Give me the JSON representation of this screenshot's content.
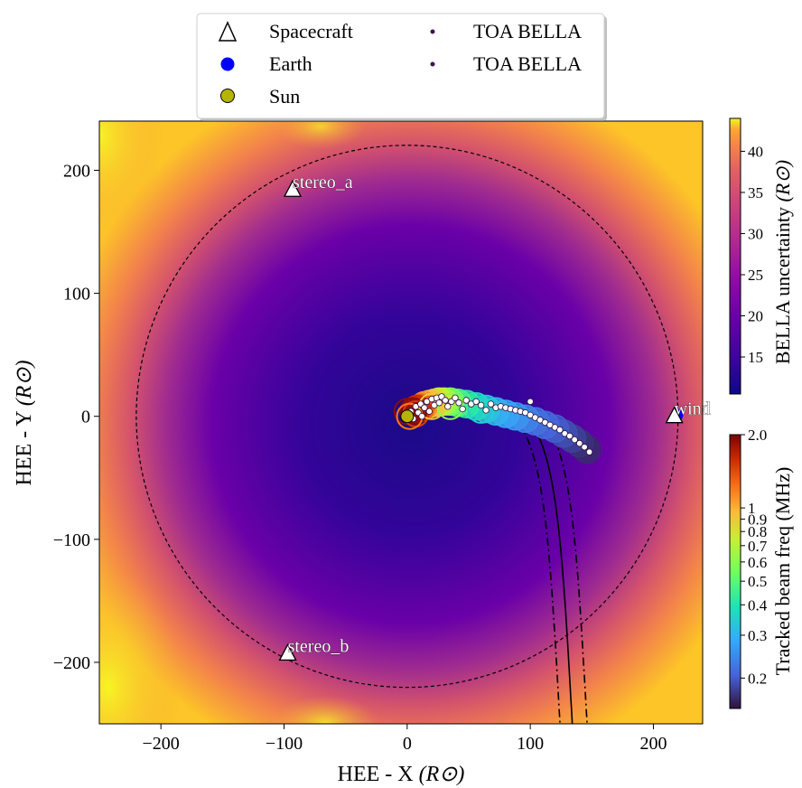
{
  "chart_data": {
    "type": "heatmap",
    "xlabel": "HEE - X",
    "ylabel": "HEE - Y",
    "axis_unit": "(R⊙)",
    "xlim": [
      -250,
      240
    ],
    "ylim": [
      -250,
      240
    ],
    "x_ticks": [
      -200,
      -100,
      0,
      100,
      200
    ],
    "y_ticks": [
      -200,
      -100,
      0,
      100,
      200
    ],
    "x_tick_labels": [
      "−200",
      "−100",
      "0",
      "100",
      "200"
    ],
    "y_tick_labels": [
      "−200",
      "−100",
      "0",
      "100",
      "200"
    ],
    "dashed_circle_radius": 220,
    "spacecraft": [
      {
        "name": "stereo_a",
        "x": -93,
        "y": 184
      },
      {
        "name": "stereo_b",
        "x": -97,
        "y": -193
      },
      {
        "name": "wind",
        "x": 217,
        "y": 0
      }
    ],
    "earth": {
      "x": 219,
      "y": 1
    },
    "sun": {
      "x": 0,
      "y": 0
    },
    "legend": {
      "position": "top-center",
      "entries": [
        {
          "label": "Spacecraft",
          "marker": "triangle"
        },
        {
          "label": "Earth",
          "marker": "circle",
          "color": "#0000ff"
        },
        {
          "label": "Sun",
          "marker": "circle",
          "color": "#b5b500"
        },
        {
          "label": "TOA BELLA",
          "marker": "dot",
          "color": "#3b1450"
        },
        {
          "label": "TOA BELLA",
          "marker": "dot",
          "color": "#3b1450"
        }
      ]
    },
    "uncertainty_colorbar": {
      "label": "BELLA uncertainty",
      "unit": "(R⊙)",
      "range": [
        10.5,
        44
      ],
      "ticks": [
        15,
        20,
        25,
        30,
        35,
        40
      ],
      "colormap": "plasma"
    },
    "frequency_colorbar": {
      "label": "Tracked beam freq (MHz)",
      "scale": "log",
      "range": [
        0.15,
        2.0
      ],
      "ticks": [
        0.2,
        0.3,
        0.4,
        0.5,
        0.6,
        0.7,
        0.8,
        0.9,
        1,
        2.0
      ],
      "tick_labels": [
        "0.2",
        "0.3",
        "0.4",
        "0.5",
        "0.6",
        "0.7",
        "0.8",
        "0.9",
        "1",
        "2.0"
      ],
      "colormap": "turbo"
    },
    "tracked_beam": [
      {
        "x": 5,
        "y": 4,
        "freq": 1.9
      },
      {
        "x": 8,
        "y": 6,
        "freq": 1.6
      },
      {
        "x": 11,
        "y": 7,
        "freq": 1.3
      },
      {
        "x": 14,
        "y": 9,
        "freq": 1.1
      },
      {
        "x": 18,
        "y": 10,
        "freq": 0.95
      },
      {
        "x": 22,
        "y": 11,
        "freq": 0.85
      },
      {
        "x": 26,
        "y": 12,
        "freq": 0.75
      },
      {
        "x": 30,
        "y": 12,
        "freq": 0.65
      },
      {
        "x": 35,
        "y": 12,
        "freq": 0.55
      },
      {
        "x": 41,
        "y": 11,
        "freq": 0.47
      },
      {
        "x": 48,
        "y": 10,
        "freq": 0.42
      },
      {
        "x": 56,
        "y": 8,
        "freq": 0.37
      },
      {
        "x": 64,
        "y": 6,
        "freq": 0.33
      },
      {
        "x": 72,
        "y": 4,
        "freq": 0.3
      },
      {
        "x": 80,
        "y": 2,
        "freq": 0.28
      },
      {
        "x": 88,
        "y": 0,
        "freq": 0.26
      },
      {
        "x": 96,
        "y": -2,
        "freq": 0.24
      },
      {
        "x": 104,
        "y": -4,
        "freq": 0.22
      },
      {
        "x": 112,
        "y": -7,
        "freq": 0.21
      },
      {
        "x": 120,
        "y": -10,
        "freq": 0.2
      },
      {
        "x": 127,
        "y": -14,
        "freq": 0.19
      },
      {
        "x": 134,
        "y": -18,
        "freq": 0.18
      },
      {
        "x": 140,
        "y": -22,
        "freq": 0.17
      },
      {
        "x": 146,
        "y": -27,
        "freq": 0.165
      }
    ],
    "toa_points": [
      [
        3,
        4
      ],
      [
        5,
        -2
      ],
      [
        7,
        8
      ],
      [
        9,
        3
      ],
      [
        11,
        10
      ],
      [
        12,
        0
      ],
      [
        14,
        7
      ],
      [
        16,
        12
      ],
      [
        18,
        4
      ],
      [
        20,
        14
      ],
      [
        22,
        9
      ],
      [
        24,
        15
      ],
      [
        26,
        11
      ],
      [
        28,
        16
      ],
      [
        31,
        13
      ],
      [
        33,
        8
      ],
      [
        36,
        12
      ],
      [
        39,
        15
      ],
      [
        42,
        11
      ],
      [
        45,
        6
      ],
      [
        48,
        13
      ],
      [
        52,
        10
      ],
      [
        56,
        12
      ],
      [
        60,
        9
      ],
      [
        64,
        5
      ],
      [
        68,
        10
      ],
      [
        72,
        7
      ],
      [
        76,
        8
      ],
      [
        80,
        7
      ],
      [
        84,
        6
      ],
      [
        88,
        5
      ],
      [
        92,
        4
      ],
      [
        96,
        3
      ],
      [
        100,
        12
      ],
      [
        100,
        1
      ],
      [
        104,
        -1
      ],
      [
        108,
        -3
      ],
      [
        112,
        -5
      ],
      [
        116,
        -7
      ],
      [
        120,
        -9
      ],
      [
        124,
        -11
      ],
      [
        128,
        -14
      ],
      [
        132,
        -16
      ],
      [
        136,
        -19
      ],
      [
        140,
        -22
      ],
      [
        144,
        -25
      ],
      [
        148,
        -29
      ]
    ]
  }
}
